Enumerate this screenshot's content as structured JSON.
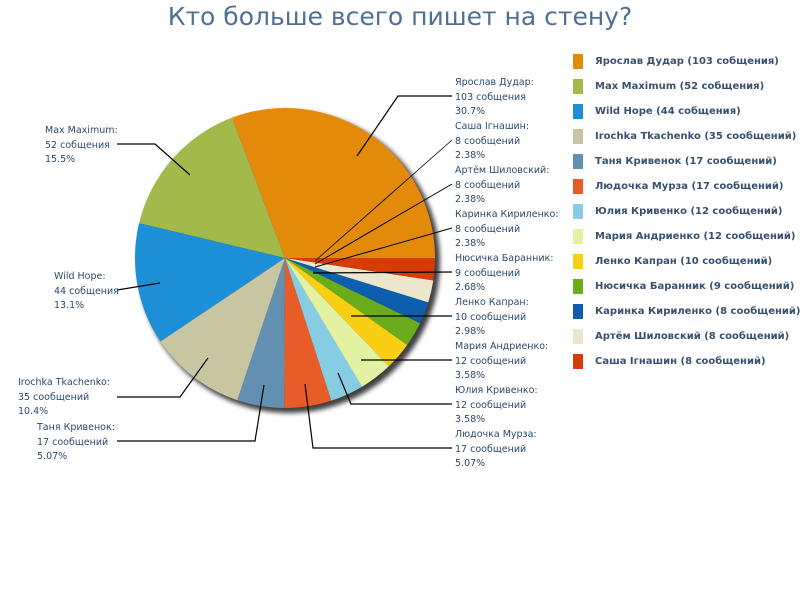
{
  "title": "Кто больше всего пишет на стену?",
  "chart_data": {
    "type": "pie",
    "title": "Кто больше всего пишет на стену?",
    "start_angle_deg": 0,
    "direction": "counterclockwise",
    "total": 335,
    "slices": [
      {
        "name": "Ярослав Дудар",
        "value": 103,
        "unit": "собщения",
        "percent": "30.7%",
        "color": "#e38a0b",
        "legend": "Ярослав Дудар (103 собщения)"
      },
      {
        "name": "Max Maximum",
        "value": 52,
        "unit": "собщения",
        "percent": "15.5%",
        "color": "#a3b94b",
        "legend": "Max Maximum (52 собщения)"
      },
      {
        "name": "Wild Hope",
        "value": 44,
        "unit": "собщения",
        "percent": "13.1%",
        "color": "#1d8fd6",
        "legend": "Wild Hope (44 собщения)"
      },
      {
        "name": "Irochka Tkachenko",
        "value": 35,
        "unit": "сообщений",
        "percent": "10.4%",
        "color": "#c8c6a0",
        "legend": "Irochka Tkachenko (35 сообщений)"
      },
      {
        "name": "Таня Кривенок",
        "value": 17,
        "unit": "сообщений",
        "percent": "5.07%",
        "color": "#6390b0",
        "legend": "Таня Кривенок (17 сообщений)"
      },
      {
        "name": "Людочка Мурза",
        "value": 17,
        "unit": "сообщений",
        "percent": "5.07%",
        "color": "#e85c27",
        "legend": "Людочка Мурза (17 сообщений)"
      },
      {
        "name": "Юлия Кривенко",
        "value": 12,
        "unit": "сообщений",
        "percent": "3.58%",
        "color": "#86cde3",
        "legend": "Юлия Кривенко (12 сообщений)"
      },
      {
        "name": "Мария Андриенко",
        "value": 12,
        "unit": "сообщений",
        "percent": "3.58%",
        "color": "#e3f1a2",
        "legend": "Мария Андриенко (12 сообщений)"
      },
      {
        "name": "Ленко Капран",
        "value": 10,
        "unit": "сообщений",
        "percent": "2.98%",
        "color": "#f8cf14",
        "legend": "Ленко Капран (10 сообщений)"
      },
      {
        "name": "Нюсичка Баранник",
        "value": 9,
        "unit": "сообщений",
        "percent": "2.68%",
        "color": "#6aac1b",
        "legend": "Нюсичка Баранник (9 сообщений)"
      },
      {
        "name": "Каринка Кириленко",
        "value": 8,
        "unit": "сообщений",
        "percent": "2.38%",
        "color": "#0d5fad",
        "legend": "Каринка Кириленко (8 сообщений)"
      },
      {
        "name": "Артём Шиловский",
        "value": 8,
        "unit": "сообщений",
        "percent": "2.38%",
        "color": "#ebe6cc",
        "legend": "Артём Шиловский (8 сообщений)"
      },
      {
        "name": "Саша Ігнашин",
        "value": 8,
        "unit": "сообщений",
        "percent": "2.38%",
        "color": "#d63b08",
        "legend": "Саша Ігнашин (8 сообщений)"
      }
    ],
    "legend_position": "right"
  },
  "labels": [
    {
      "line1": "Ярослав Дудар:",
      "line2": "103 собщения",
      "line3": "30.7%"
    },
    {
      "line1": "Max Maximum:",
      "line2": "52 собщения",
      "line3": "15.5%"
    },
    {
      "line1": "Wild Hope:",
      "line2": "44 собщения",
      "line3": "13.1%"
    },
    {
      "line1": "Irochka Tkachenko:",
      "line2": "35 сообщений",
      "line3": "10.4%"
    },
    {
      "line1": "Таня Кривенок:",
      "line2": "17 сообщений",
      "line3": "5.07%"
    },
    {
      "line1": "Людочка Мурза:",
      "line2": "17 сообщений",
      "line3": "5.07%"
    },
    {
      "line1": "Юлия Кривенко:",
      "line2": "12 сообщений",
      "line3": "3.58%"
    },
    {
      "line1": "Мария Андриенко:",
      "line2": "12 сообщений",
      "line3": "3.58%"
    },
    {
      "line1": "Ленко Капран:",
      "line2": "10 сообщений",
      "line3": "2.98%"
    },
    {
      "line1": "Нюсичка Баранник:",
      "line2": "9 сообщений",
      "line3": "2.68%"
    },
    {
      "line1": "Каринка Кириленко:",
      "line2": "8 сообщений",
      "line3": "2.38%"
    },
    {
      "line1": "Артём Шиловский:",
      "line2": "8 сообщений",
      "line3": "2.38%"
    },
    {
      "line1": "Саша Ігнашин:",
      "line2": "8 сообщений",
      "line3": "2.38%"
    }
  ],
  "legend": {
    "items": [
      {
        "label": "Ярослав Дудар (103 собщения)",
        "color": "#e38a0b"
      },
      {
        "label": "Max Maximum (52 собщения)",
        "color": "#a3b94b"
      },
      {
        "label": "Wild Hope (44 собщения)",
        "color": "#1d8fd6"
      },
      {
        "label": "Irochka Tkachenko (35 сообщений)",
        "color": "#c8c6a0"
      },
      {
        "label": "Таня Кривенок (17 сообщений)",
        "color": "#6390b0"
      },
      {
        "label": "Людочка Мурза (17 сообщений)",
        "color": "#e85c27"
      },
      {
        "label": "Юлия Кривенко (12 сообщений)",
        "color": "#86cde3"
      },
      {
        "label": "Мария Андриенко (12 сообщений)",
        "color": "#e3f1a2"
      },
      {
        "label": "Ленко Капран (10 сообщений)",
        "color": "#f8cf14"
      },
      {
        "label": "Нюсичка Баранник (9 сообщений)",
        "color": "#6aac1b"
      },
      {
        "label": "Каринка Кириленко (8 сообщений)",
        "color": "#0d5fad"
      },
      {
        "label": "Артём Шиловский (8 сообщений)",
        "color": "#ebe6cc"
      },
      {
        "label": "Саша Ігнашин (8 сообщений)",
        "color": "#d63b08"
      }
    ]
  }
}
